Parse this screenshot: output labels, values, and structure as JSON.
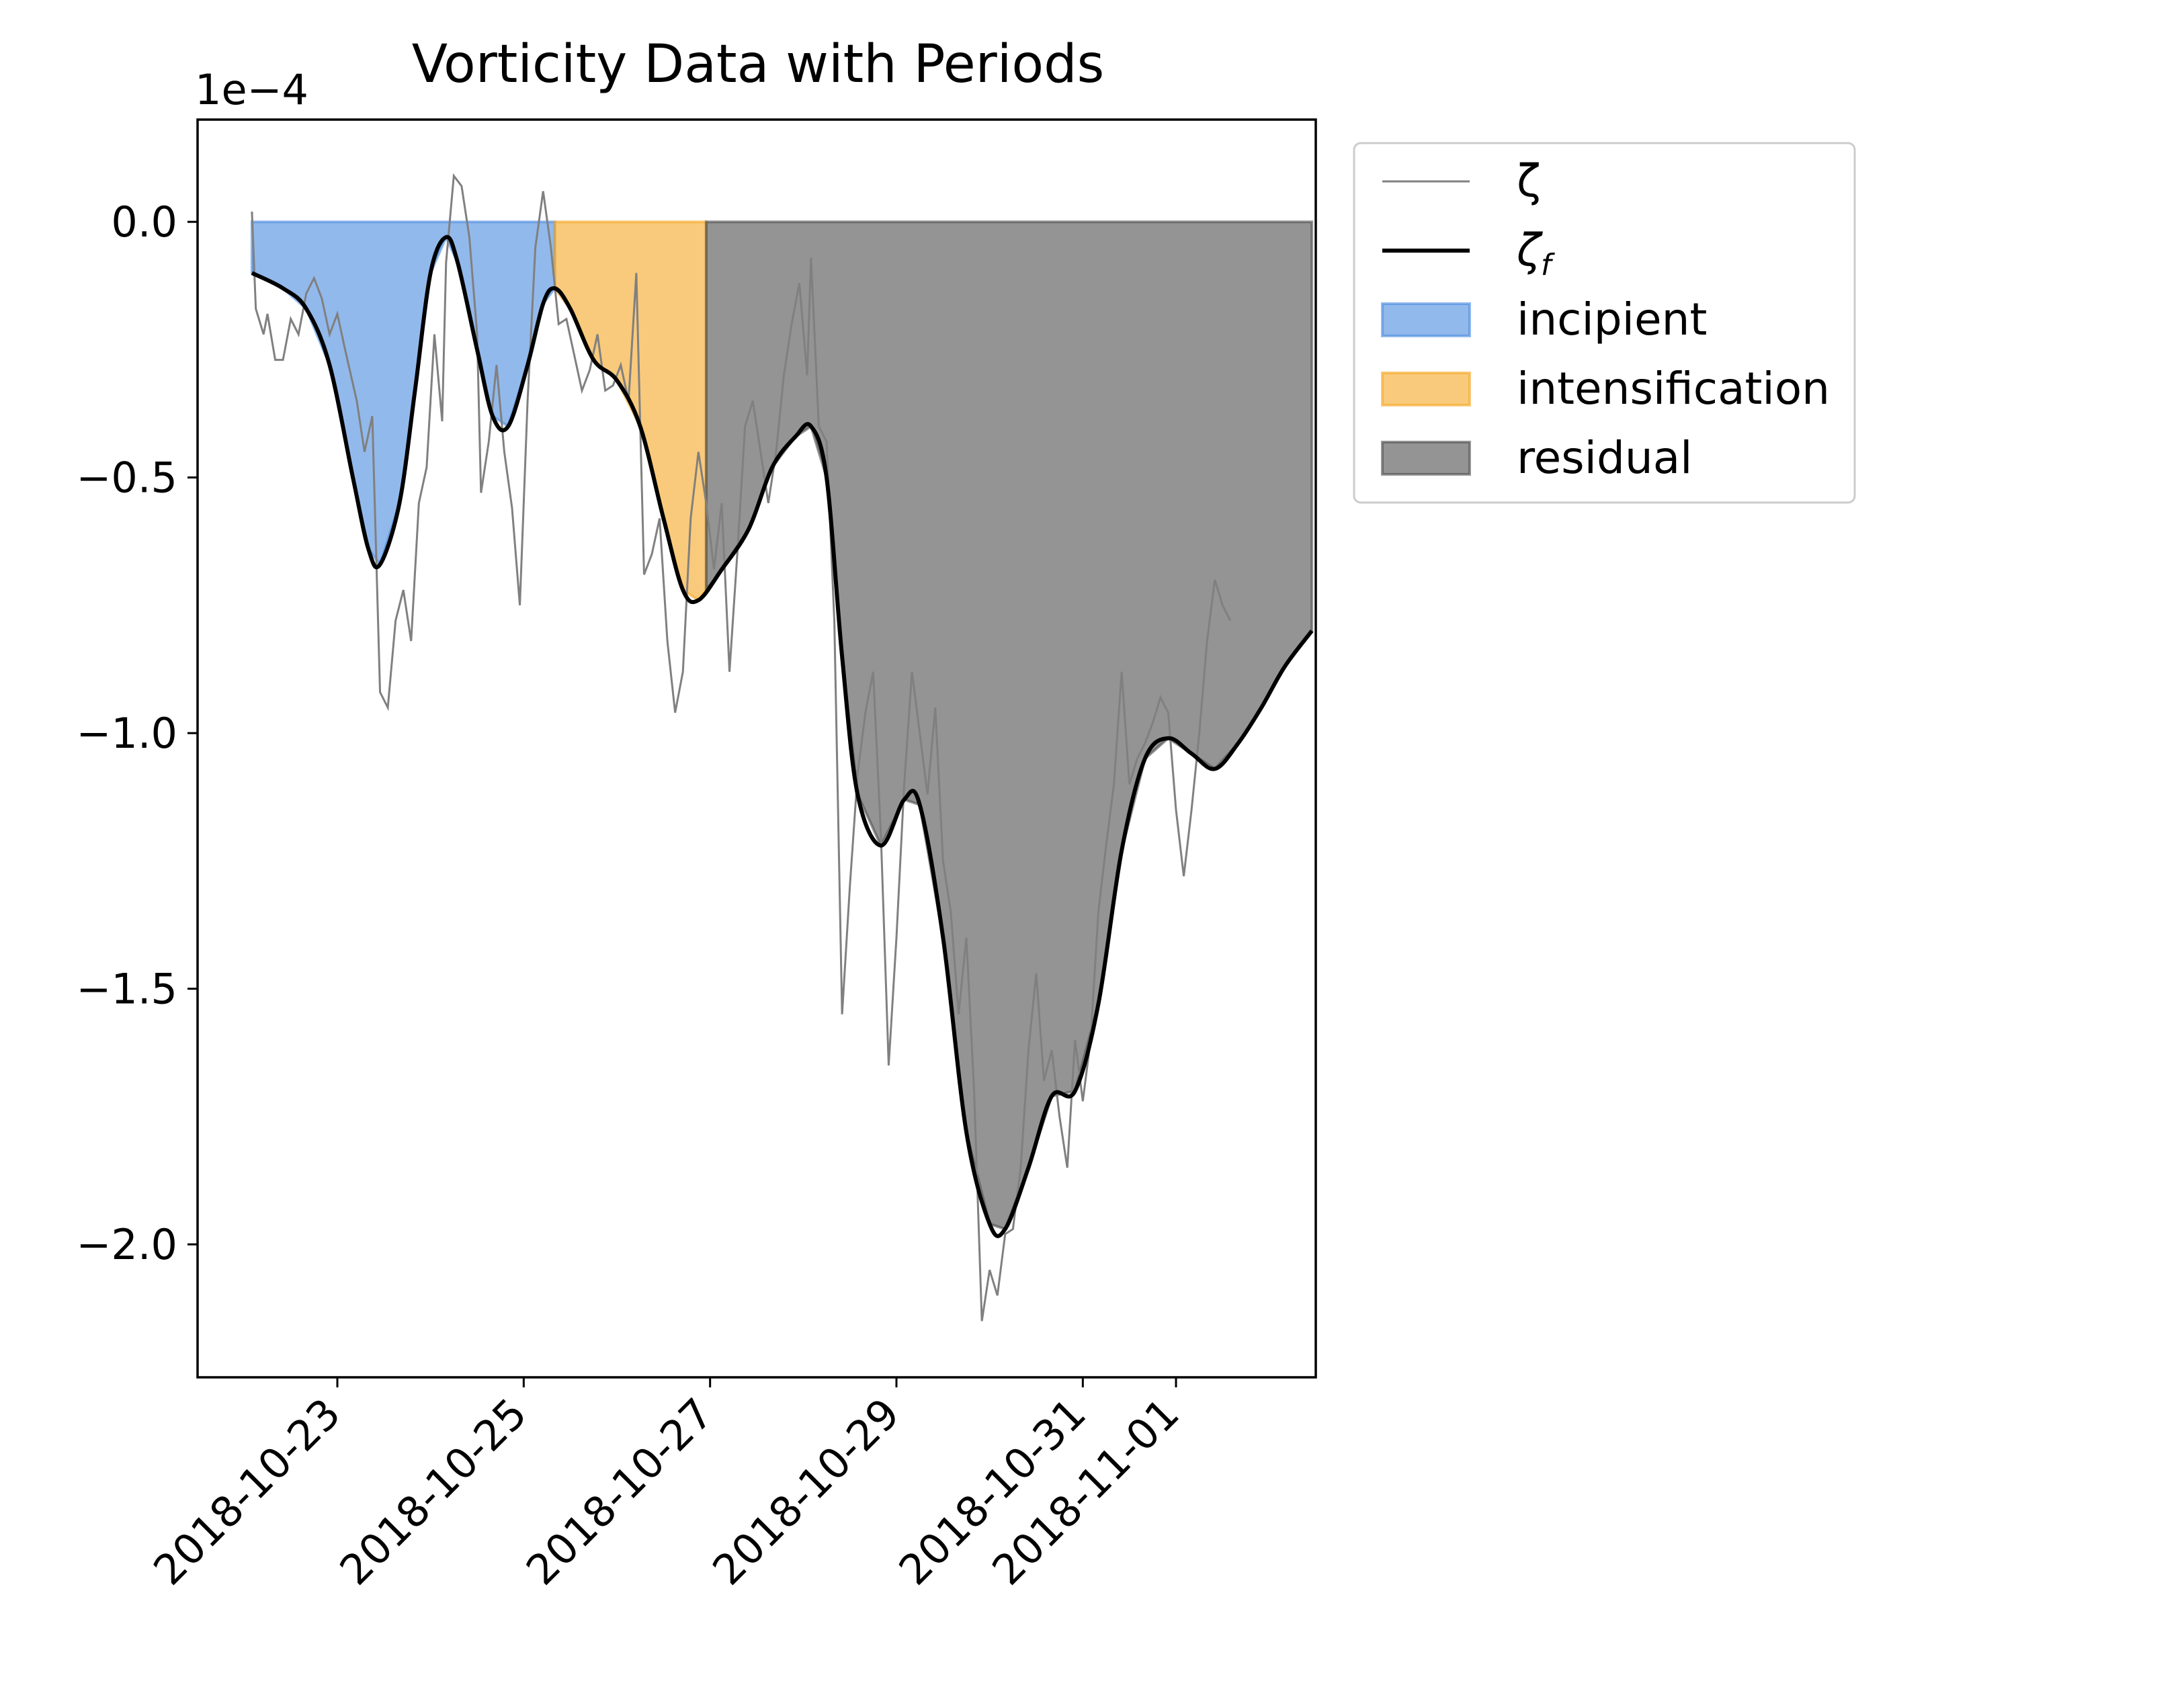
{
  "chart_data": {
    "type": "line",
    "title": "Vorticity Data with Periods",
    "offset_text": "1e−4",
    "y_scale_factor": 0.0001,
    "ylim": [
      -2.26,
      0.2
    ],
    "xlim": [
      "2018-10-21T12:00",
      "2018-11-02T12:00"
    ],
    "yticks": [
      {
        "value": 0.0,
        "label": "0.0"
      },
      {
        "value": -0.5,
        "label": "−0.5"
      },
      {
        "value": -1.0,
        "label": "−1.0"
      },
      {
        "value": -1.5,
        "label": "−1.5"
      },
      {
        "value": -2.0,
        "label": "−2.0"
      }
    ],
    "xticks": [
      {
        "date": "2018-10-23",
        "label": "2018-10-23"
      },
      {
        "date": "2018-10-25",
        "label": "2018-10-25"
      },
      {
        "date": "2018-10-27",
        "label": "2018-10-27"
      },
      {
        "date": "2018-10-29",
        "label": "2018-10-29"
      },
      {
        "date": "2018-10-31",
        "label": "2018-10-31"
      },
      {
        "date": "2018-11-01",
        "label": "2018-11-01"
      }
    ],
    "grid": false,
    "legend_position": "outside upper right",
    "periods": [
      {
        "name": "incipient",
        "start": "2018-10-22T02:00",
        "end": "2018-10-25T08:00",
        "color": "#4a8ae0"
      },
      {
        "name": "intensification",
        "start": "2018-10-25T08:00",
        "end": "2018-10-26T23:00",
        "color": "#f5a623"
      },
      {
        "name": "residual",
        "start": "2018-10-26T23:00",
        "end": "2018-11-02T11:00",
        "color": "#4d4d4d"
      }
    ],
    "series": [
      {
        "name": "ζ",
        "color": "#808080",
        "points": [
          [
            "2018-10-22T02:00",
            0.02
          ],
          [
            "2018-10-22T03:00",
            -0.17
          ],
          [
            "2018-10-22T05:00",
            -0.22
          ],
          [
            "2018-10-22T06:00",
            -0.18
          ],
          [
            "2018-10-22T08:00",
            -0.27
          ],
          [
            "2018-10-22T10:00",
            -0.27
          ],
          [
            "2018-10-22T12:00",
            -0.19
          ],
          [
            "2018-10-22T14:00",
            -0.22
          ],
          [
            "2018-10-22T16:00",
            -0.14
          ],
          [
            "2018-10-22T18:00",
            -0.11
          ],
          [
            "2018-10-22T20:00",
            -0.15
          ],
          [
            "2018-10-22T22:00",
            -0.22
          ],
          [
            "2018-10-23T00:00",
            -0.18
          ],
          [
            "2018-10-23T02:00",
            -0.25
          ],
          [
            "2018-10-23T05:00",
            -0.35
          ],
          [
            "2018-10-23T07:00",
            -0.45
          ],
          [
            "2018-10-23T09:00",
            -0.38
          ],
          [
            "2018-10-23T11:00",
            -0.92
          ],
          [
            "2018-10-23T13:00",
            -0.95
          ],
          [
            "2018-10-23T15:00",
            -0.78
          ],
          [
            "2018-10-23T17:00",
            -0.72
          ],
          [
            "2018-10-23T19:00",
            -0.82
          ],
          [
            "2018-10-23T21:00",
            -0.55
          ],
          [
            "2018-10-23T23:00",
            -0.48
          ],
          [
            "2018-10-24T01:00",
            -0.22
          ],
          [
            "2018-10-24T03:00",
            -0.39
          ],
          [
            "2018-10-24T04:00",
            -0.08
          ],
          [
            "2018-10-24T06:00",
            0.09
          ],
          [
            "2018-10-24T08:00",
            0.07
          ],
          [
            "2018-10-24T10:00",
            -0.03
          ],
          [
            "2018-10-24T12:00",
            -0.22
          ],
          [
            "2018-10-24T13:00",
            -0.53
          ],
          [
            "2018-10-24T15:00",
            -0.43
          ],
          [
            "2018-10-24T17:00",
            -0.28
          ],
          [
            "2018-10-24T19:00",
            -0.45
          ],
          [
            "2018-10-24T21:00",
            -0.56
          ],
          [
            "2018-10-24T23:00",
            -0.75
          ],
          [
            "2018-10-25T01:00",
            -0.35
          ],
          [
            "2018-10-25T03:00",
            -0.05
          ],
          [
            "2018-10-25T05:00",
            0.06
          ],
          [
            "2018-10-25T07:00",
            -0.05
          ],
          [
            "2018-10-25T09:00",
            -0.2
          ],
          [
            "2018-10-25T11:00",
            -0.19
          ],
          [
            "2018-10-25T13:00",
            -0.26
          ],
          [
            "2018-10-25T15:00",
            -0.33
          ],
          [
            "2018-10-25T17:00",
            -0.29
          ],
          [
            "2018-10-25T19:00",
            -0.22
          ],
          [
            "2018-10-25T21:00",
            -0.33
          ],
          [
            "2018-10-25T23:00",
            -0.32
          ],
          [
            "2018-10-26T01:00",
            -0.28
          ],
          [
            "2018-10-26T03:00",
            -0.35
          ],
          [
            "2018-10-26T05:00",
            -0.1
          ],
          [
            "2018-10-26T07:00",
            -0.69
          ],
          [
            "2018-10-26T09:00",
            -0.65
          ],
          [
            "2018-10-26T11:00",
            -0.58
          ],
          [
            "2018-10-26T13:00",
            -0.82
          ],
          [
            "2018-10-26T15:00",
            -0.96
          ],
          [
            "2018-10-26T17:00",
            -0.88
          ],
          [
            "2018-10-26T19:00",
            -0.58
          ],
          [
            "2018-10-26T21:00",
            -0.45
          ],
          [
            "2018-10-26T23:00",
            -0.55
          ],
          [
            "2018-10-27T01:00",
            -0.68
          ],
          [
            "2018-10-27T03:00",
            -0.55
          ],
          [
            "2018-10-27T05:00",
            -0.88
          ],
          [
            "2018-10-27T07:00",
            -0.65
          ],
          [
            "2018-10-27T09:00",
            -0.4
          ],
          [
            "2018-10-27T11:00",
            -0.35
          ],
          [
            "2018-10-27T13:00",
            -0.45
          ],
          [
            "2018-10-27T15:00",
            -0.55
          ],
          [
            "2018-10-27T17:00",
            -0.45
          ],
          [
            "2018-10-27T19:00",
            -0.3
          ],
          [
            "2018-10-27T21:00",
            -0.2
          ],
          [
            "2018-10-27T23:00",
            -0.12
          ],
          [
            "2018-10-28T01:00",
            -0.3
          ],
          [
            "2018-10-28T02:00",
            -0.07
          ],
          [
            "2018-10-28T04:00",
            -0.4
          ],
          [
            "2018-10-28T06:00",
            -0.43
          ],
          [
            "2018-10-28T08:00",
            -0.78
          ],
          [
            "2018-10-28T10:00",
            -1.55
          ],
          [
            "2018-10-28T12:00",
            -1.3
          ],
          [
            "2018-10-28T14:00",
            -1.08
          ],
          [
            "2018-10-28T16:00",
            -0.96
          ],
          [
            "2018-10-28T18:00",
            -0.88
          ],
          [
            "2018-10-28T20:00",
            -1.2
          ],
          [
            "2018-10-28T22:00",
            -1.65
          ],
          [
            "2018-10-29T00:00",
            -1.4
          ],
          [
            "2018-10-29T02:00",
            -1.1
          ],
          [
            "2018-10-29T04:00",
            -0.88
          ],
          [
            "2018-10-29T06:00",
            -1.0
          ],
          [
            "2018-10-29T08:00",
            -1.12
          ],
          [
            "2018-10-29T10:00",
            -0.95
          ],
          [
            "2018-10-29T12:00",
            -1.25
          ],
          [
            "2018-10-29T14:00",
            -1.35
          ],
          [
            "2018-10-29T16:00",
            -1.55
          ],
          [
            "2018-10-29T18:00",
            -1.4
          ],
          [
            "2018-10-29T20:00",
            -1.7
          ],
          [
            "2018-10-29T22:00",
            -2.15
          ],
          [
            "2018-10-30T00:00",
            -2.05
          ],
          [
            "2018-10-30T02:00",
            -2.1
          ],
          [
            "2018-10-30T04:00",
            -1.98
          ],
          [
            "2018-10-30T06:00",
            -1.97
          ],
          [
            "2018-10-30T08:00",
            -1.85
          ],
          [
            "2018-10-30T10:00",
            -1.62
          ],
          [
            "2018-10-30T12:00",
            -1.47
          ],
          [
            "2018-10-30T14:00",
            -1.68
          ],
          [
            "2018-10-30T16:00",
            -1.62
          ],
          [
            "2018-10-30T18:00",
            -1.75
          ],
          [
            "2018-10-30T20:00",
            -1.85
          ],
          [
            "2018-10-30T22:00",
            -1.6
          ],
          [
            "2018-10-31T00:00",
            -1.72
          ],
          [
            "2018-10-31T02:00",
            -1.6
          ],
          [
            "2018-10-31T04:00",
            -1.35
          ],
          [
            "2018-10-31T06:00",
            -1.22
          ],
          [
            "2018-10-31T08:00",
            -1.1
          ],
          [
            "2018-10-31T10:00",
            -0.88
          ],
          [
            "2018-10-31T12:00",
            -1.1
          ],
          [
            "2018-10-31T14:00",
            -1.05
          ],
          [
            "2018-10-31T16:00",
            -1.02
          ],
          [
            "2018-10-31T18:00",
            -0.98
          ],
          [
            "2018-10-31T20:00",
            -0.93
          ],
          [
            "2018-10-31T22:00",
            -0.96
          ],
          [
            "2018-11-01T00:00",
            -1.15
          ],
          [
            "2018-11-01T02:00",
            -1.28
          ],
          [
            "2018-11-01T04:00",
            -1.15
          ],
          [
            "2018-11-01T06:00",
            -1.0
          ],
          [
            "2018-11-01T08:00",
            -0.82
          ],
          [
            "2018-11-01T10:00",
            -0.7
          ],
          [
            "2018-11-01T12:00",
            -0.75
          ],
          [
            "2018-11-01T14:00",
            -0.78
          ]
        ]
      },
      {
        "name": "ζf",
        "color": "#000000",
        "points": [
          [
            "2018-10-22T02:00",
            -0.1
          ],
          [
            "2018-10-22T10:00",
            -0.13
          ],
          [
            "2018-10-22T16:00",
            -0.17
          ],
          [
            "2018-10-22T22:00",
            -0.28
          ],
          [
            "2018-10-23T04:00",
            -0.5
          ],
          [
            "2018-10-23T08:00",
            -0.64
          ],
          [
            "2018-10-23T11:00",
            -0.67
          ],
          [
            "2018-10-23T16:00",
            -0.55
          ],
          [
            "2018-10-23T20:00",
            -0.33
          ],
          [
            "2018-10-24T00:00",
            -0.1
          ],
          [
            "2018-10-24T04:00",
            -0.03
          ],
          [
            "2018-10-24T07:00",
            -0.08
          ],
          [
            "2018-10-24T12:00",
            -0.25
          ],
          [
            "2018-10-24T16:00",
            -0.38
          ],
          [
            "2018-10-24T20:00",
            -0.4
          ],
          [
            "2018-10-25T01:00",
            -0.28
          ],
          [
            "2018-10-25T05:00",
            -0.16
          ],
          [
            "2018-10-25T08:00",
            -0.13
          ],
          [
            "2018-10-25T12:00",
            -0.17
          ],
          [
            "2018-10-25T18:00",
            -0.27
          ],
          [
            "2018-10-26T00:00",
            -0.31
          ],
          [
            "2018-10-26T06:00",
            -0.4
          ],
          [
            "2018-10-26T12:00",
            -0.58
          ],
          [
            "2018-10-26T17:00",
            -0.72
          ],
          [
            "2018-10-26T21:00",
            -0.74
          ],
          [
            "2018-10-27T03:00",
            -0.68
          ],
          [
            "2018-10-27T10:00",
            -0.6
          ],
          [
            "2018-10-27T16:00",
            -0.48
          ],
          [
            "2018-10-27T22:00",
            -0.42
          ],
          [
            "2018-10-28T02:00",
            -0.4
          ],
          [
            "2018-10-28T06:00",
            -0.5
          ],
          [
            "2018-10-28T10:00",
            -0.85
          ],
          [
            "2018-10-28T14:00",
            -1.12
          ],
          [
            "2018-10-28T20:00",
            -1.22
          ],
          [
            "2018-10-29T02:00",
            -1.13
          ],
          [
            "2018-10-29T06:00",
            -1.14
          ],
          [
            "2018-10-29T12:00",
            -1.4
          ],
          [
            "2018-10-29T18:00",
            -1.78
          ],
          [
            "2018-10-30T00:00",
            -1.96
          ],
          [
            "2018-10-30T04:00",
            -1.97
          ],
          [
            "2018-10-30T10:00",
            -1.85
          ],
          [
            "2018-10-30T16:00",
            -1.71
          ],
          [
            "2018-10-30T22:00",
            -1.7
          ],
          [
            "2018-10-31T04:00",
            -1.53
          ],
          [
            "2018-10-31T10:00",
            -1.23
          ],
          [
            "2018-10-31T16:00",
            -1.05
          ],
          [
            "2018-10-31T22:00",
            -1.01
          ],
          [
            "2018-11-01T04:00",
            -1.04
          ],
          [
            "2018-11-01T10:00",
            -1.07
          ],
          [
            "2018-11-01T16:00",
            -1.02
          ],
          [
            "2018-11-01T22:00",
            -0.95
          ],
          [
            "2018-11-02T04:00",
            -0.87
          ],
          [
            "2018-11-02T11:00",
            -0.8
          ]
        ]
      }
    ],
    "legend": [
      {
        "label": "ζ",
        "kind": "line",
        "color": "#808080"
      },
      {
        "label": "ζf",
        "kind": "line",
        "color": "#000000"
      },
      {
        "label": "incipient",
        "kind": "patch",
        "color": "#4a8ae0"
      },
      {
        "label": "intensification",
        "kind": "patch",
        "color": "#f5a623"
      },
      {
        "label": "residual",
        "kind": "patch",
        "color": "#4d4d4d"
      }
    ]
  }
}
